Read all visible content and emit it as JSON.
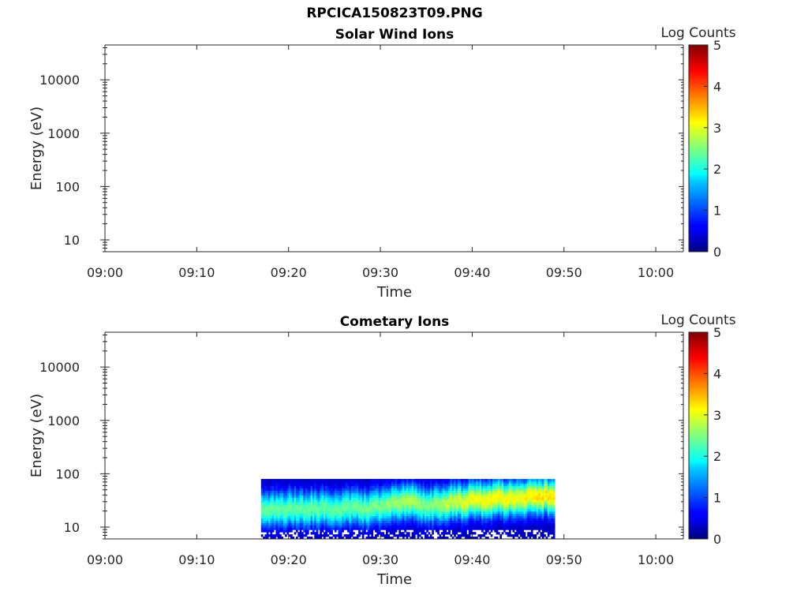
{
  "figure": {
    "title": "RPCICA150823T09.PNG"
  },
  "chart_data": [
    {
      "type": "heatmap",
      "title": "Solar Wind Ions",
      "xlabel": "Time",
      "ylabel": "Energy (eV)",
      "x_ticks": [
        "09:00",
        "09:10",
        "09:20",
        "09:30",
        "09:40",
        "09:50",
        "10:00"
      ],
      "xlim_minutes": [
        0,
        63
      ],
      "y_scale": "log",
      "y_ticks": [
        "10",
        "100",
        "1000",
        "10000"
      ],
      "ylim": [
        6,
        45000
      ],
      "colorbar": {
        "label": "Log Counts",
        "range": [
          0,
          5
        ],
        "ticks": [
          "0",
          "1",
          "2",
          "3",
          "4",
          "5"
        ],
        "colormap": "jet"
      },
      "data": []
    },
    {
      "type": "heatmap",
      "title": "Cometary Ions",
      "xlabel": "Time",
      "ylabel": "Energy (eV)",
      "x_ticks": [
        "09:00",
        "09:10",
        "09:20",
        "09:30",
        "09:40",
        "09:50",
        "10:00"
      ],
      "xlim_minutes": [
        0,
        63
      ],
      "y_scale": "log",
      "y_ticks": [
        "10",
        "100",
        "1000",
        "10000"
      ],
      "ylim": [
        6,
        45000
      ],
      "colorbar": {
        "label": "Log Counts",
        "range": [
          0,
          5
        ],
        "ticks": [
          "0",
          "1",
          "2",
          "3",
          "4",
          "5"
        ],
        "colormap": "jet"
      },
      "data": {
        "time_start": "09:17",
        "time_end": "09:49",
        "energy_range_eV": [
          6,
          80
        ],
        "peak_energy_eV": [
          {
            "time": "09:17",
            "energy": 22,
            "log_counts": 2.1
          },
          {
            "time": "09:20",
            "energy": 22,
            "log_counts": 2.1
          },
          {
            "time": "09:25",
            "energy": 23,
            "log_counts": 2.1
          },
          {
            "time": "09:30",
            "energy": 23,
            "log_counts": 2.2
          },
          {
            "time": "09:33",
            "energy": 32,
            "log_counts": 2.5
          },
          {
            "time": "09:35",
            "energy": 24,
            "log_counts": 2.2
          },
          {
            "time": "09:38",
            "energy": 30,
            "log_counts": 2.6
          },
          {
            "time": "09:40",
            "energy": 32,
            "log_counts": 2.8
          },
          {
            "time": "09:43",
            "energy": 35,
            "log_counts": 2.9
          },
          {
            "time": "09:45",
            "energy": 32,
            "log_counts": 2.8
          },
          {
            "time": "09:47",
            "energy": 38,
            "log_counts": 3.0
          },
          {
            "time": "09:49",
            "energy": 40,
            "log_counts": 3.0
          }
        ]
      }
    }
  ]
}
